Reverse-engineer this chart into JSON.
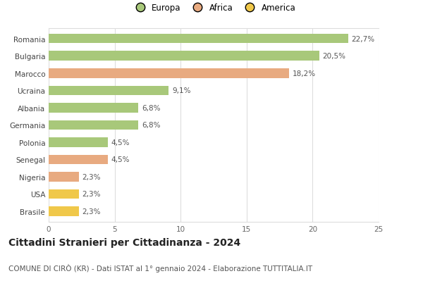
{
  "categories": [
    "Romania",
    "Bulgaria",
    "Marocco",
    "Ucraina",
    "Albania",
    "Germania",
    "Polonia",
    "Senegal",
    "Nigeria",
    "USA",
    "Brasile"
  ],
  "values": [
    22.7,
    20.5,
    18.2,
    9.1,
    6.8,
    6.8,
    4.5,
    4.5,
    2.3,
    2.3,
    2.3
  ],
  "labels": [
    "22,7%",
    "20,5%",
    "18,2%",
    "9,1%",
    "6,8%",
    "6,8%",
    "4,5%",
    "4,5%",
    "2,3%",
    "2,3%",
    "2,3%"
  ],
  "bar_colors": [
    "#a8c87a",
    "#a8c87a",
    "#e8aa80",
    "#a8c87a",
    "#a8c87a",
    "#a8c87a",
    "#a8c87a",
    "#e8aa80",
    "#e8aa80",
    "#f0c84a",
    "#f0c84a"
  ],
  "legend_labels": [
    "Europa",
    "Africa",
    "America"
  ],
  "legend_colors": [
    "#a8c87a",
    "#e8aa80",
    "#f0c84a"
  ],
  "title": "Cittadini Stranieri per Cittadinanza - 2024",
  "subtitle": "COMUNE DI CIRÒ (KR) - Dati ISTAT al 1° gennaio 2024 - Elaborazione TUTTITALIA.IT",
  "xlim": [
    0,
    25
  ],
  "xticks": [
    0,
    5,
    10,
    15,
    20,
    25
  ],
  "bg_color": "#ffffff",
  "grid_color": "#dddddd",
  "bar_height": 0.55,
  "label_fontsize": 7.5,
  "title_fontsize": 10,
  "subtitle_fontsize": 7.5,
  "ytick_fontsize": 7.5,
  "xtick_fontsize": 7.5,
  "legend_fontsize": 8.5
}
